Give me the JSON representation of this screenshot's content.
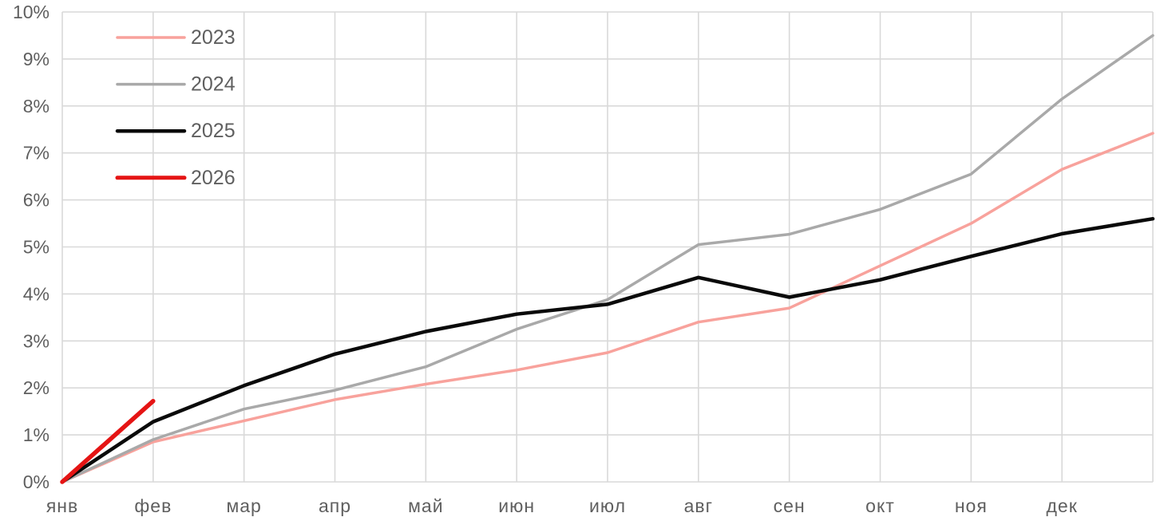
{
  "chart_data": {
    "type": "line",
    "title": "",
    "xlabel": "",
    "ylabel": "",
    "x_tick_labels": [
      "янв",
      "фев",
      "мар",
      "апр",
      "май",
      "июн",
      "июл",
      "авг",
      "сен",
      "окт",
      "ноя",
      "дек"
    ],
    "y_tick_labels": [
      "0%",
      "1%",
      "2%",
      "3%",
      "4%",
      "5%",
      "6%",
      "7%",
      "8%",
      "9%",
      "10%"
    ],
    "ylim": [
      0,
      10
    ],
    "y_step": 1,
    "grid": "both",
    "x_point_count": 13,
    "legend_position": "top-left-inside",
    "series": [
      {
        "name": "2023",
        "color": "#f8a29c",
        "stroke_width": 3.5,
        "values": [
          0,
          0.85,
          1.3,
          1.75,
          2.08,
          2.38,
          2.75,
          3.4,
          3.7,
          4.6,
          5.5,
          6.65,
          7.42
        ]
      },
      {
        "name": "2024",
        "color": "#a9a9a9",
        "stroke_width": 3.5,
        "values": [
          0,
          0.9,
          1.55,
          1.95,
          2.45,
          3.25,
          3.88,
          5.05,
          5.27,
          5.8,
          6.55,
          8.15,
          9.5
        ]
      },
      {
        "name": "2025",
        "color": "#0a0a0a",
        "stroke_width": 4.5,
        "values": [
          0,
          1.28,
          2.05,
          2.72,
          3.2,
          3.57,
          3.78,
          4.35,
          3.93,
          4.3,
          4.8,
          5.28,
          5.6
        ]
      },
      {
        "name": "2026",
        "color": "#e51414",
        "stroke_width": 5.5,
        "values": [
          0,
          1.72
        ]
      }
    ],
    "style": {
      "gridline_color": "#d9d9d9",
      "axis_text_color": "#5f5f5f",
      "background_color": "#ffffff"
    }
  }
}
